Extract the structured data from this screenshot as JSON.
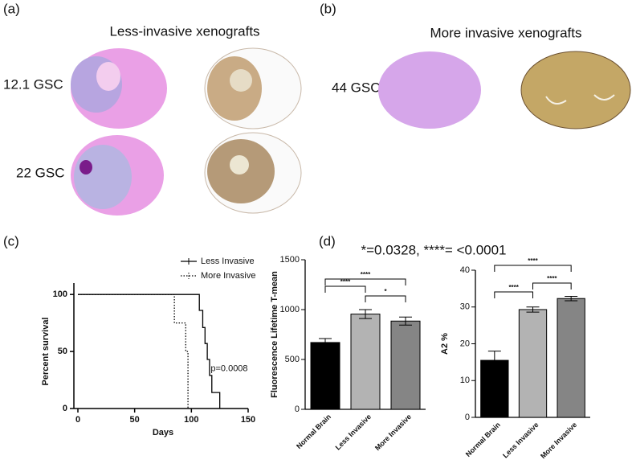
{
  "panels": {
    "a": {
      "label": "(a)",
      "title": "Less-invasive xenografts",
      "samples": [
        "12.1 GSC",
        "22 GSC"
      ]
    },
    "b": {
      "label": "(b)",
      "title": "More invasive xenografts",
      "samples": [
        "44 GSC"
      ]
    },
    "c": {
      "label": "(c)"
    },
    "d": {
      "label": "(d)",
      "note": "*=0.0328, ****= <0.0001"
    }
  },
  "chart_data": [
    {
      "type": "line",
      "xlabel": "Days",
      "ylabel": "Percent survival",
      "xlim": [
        0,
        150
      ],
      "xticks": [
        0,
        50,
        100,
        150
      ],
      "ylim": [
        0,
        110
      ],
      "yticks": [
        0,
        50,
        100
      ],
      "legend": "upper right",
      "annotation": "p=0.0008",
      "series": [
        {
          "name": "Less Invasive",
          "color": "#000000",
          "dash": "solid",
          "x": [
            0,
            107,
            107,
            110,
            110,
            112,
            112,
            114,
            114,
            116,
            116,
            118,
            118,
            125,
            125
          ],
          "values": [
            100,
            100,
            86,
            86,
            71,
            71,
            57,
            57,
            43,
            43,
            29,
            29,
            14,
            14,
            0
          ]
        },
        {
          "name": "More Invasive",
          "color": "#000000",
          "dash": "dotted",
          "x": [
            0,
            85,
            85,
            95,
            95,
            97,
            97
          ],
          "values": [
            100,
            100,
            75,
            75,
            50,
            50,
            0
          ]
        }
      ]
    },
    {
      "type": "bar",
      "ylabel": "Fluorescence Lifetime T-mean",
      "categories": [
        "Normal Brain",
        "Less Invasive",
        "More Invasive"
      ],
      "values": [
        670,
        955,
        885
      ],
      "errors": [
        40,
        45,
        40
      ],
      "colors": [
        "#000000",
        "#b3b3b3",
        "#858585"
      ],
      "ylim": [
        0,
        1500
      ],
      "yticks": [
        0,
        500,
        1000,
        1500
      ],
      "significance": [
        {
          "from": 0,
          "to": 2,
          "label": "****"
        },
        {
          "from": 0,
          "to": 1,
          "label": "****"
        },
        {
          "from": 1,
          "to": 2,
          "label": "*"
        }
      ]
    },
    {
      "type": "bar",
      "ylabel": "A2 %",
      "categories": [
        "Normal Brain",
        "Less Invasive",
        "More Invasive"
      ],
      "values": [
        15.5,
        29.3,
        32.3
      ],
      "errors": [
        2.5,
        0.7,
        0.6
      ],
      "colors": [
        "#000000",
        "#b3b3b3",
        "#858585"
      ],
      "ylim": [
        0,
        40
      ],
      "yticks": [
        0,
        10,
        20,
        30,
        40
      ],
      "significance": [
        {
          "from": 0,
          "to": 2,
          "label": "****"
        },
        {
          "from": 0,
          "to": 1,
          "label": "****"
        },
        {
          "from": 1,
          "to": 2,
          "label": "****"
        }
      ]
    }
  ]
}
